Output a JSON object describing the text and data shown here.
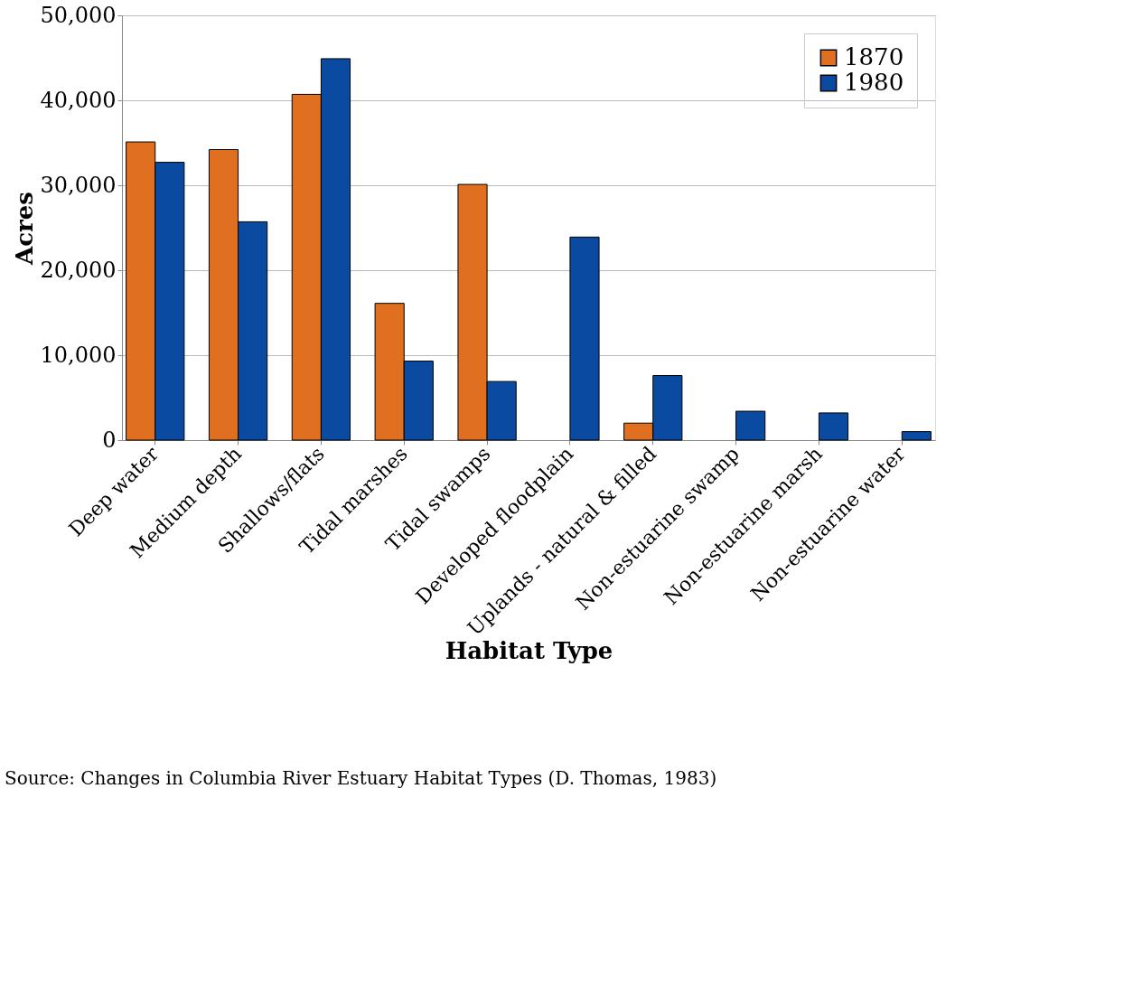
{
  "chart_data": {
    "type": "bar",
    "xlabel": "Habitat Type",
    "ylabel": "Acres",
    "categories": [
      "Deep water",
      "Medium depth",
      "Shallows/flats",
      "Tidal marshes",
      "Tidal swamps",
      "Developed floodplain",
      "Uplands - natural & filled",
      "Non-estuarine swamp",
      "Non-estuarine marsh",
      "Non-estuarine water"
    ],
    "series": [
      {
        "name": "1870",
        "color": "#e07020",
        "values": [
          35100,
          34200,
          40700,
          16100,
          30100,
          null,
          2000,
          null,
          null,
          null
        ]
      },
      {
        "name": "1980",
        "color": "#0a4aa0",
        "values": [
          32700,
          25700,
          44900,
          9300,
          6900,
          23900,
          7600,
          3400,
          3200,
          1000
        ]
      }
    ],
    "ylim": [
      0,
      50000
    ],
    "yticks": [
      {
        "value": 0,
        "label": "0"
      },
      {
        "value": 10000,
        "label": "10,000"
      },
      {
        "value": 20000,
        "label": "20,000"
      },
      {
        "value": 30000,
        "label": "30,000"
      },
      {
        "value": 40000,
        "label": "40,000"
      },
      {
        "value": 50000,
        "label": "50,000"
      }
    ],
    "grid": "y",
    "legend": "top right",
    "annotations": [
      "Source: Changes in Columbia River Estuary Habitat Types (D. Thomas, 1983)"
    ]
  }
}
